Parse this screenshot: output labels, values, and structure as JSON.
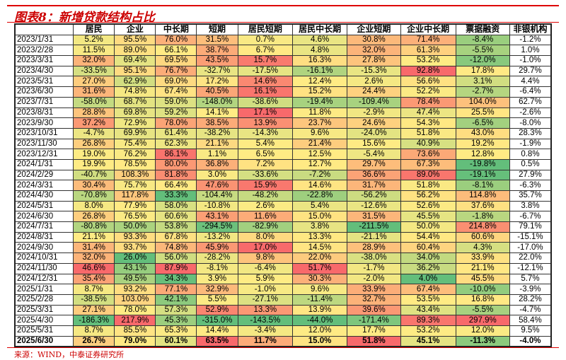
{
  "title": "图表8：新增贷款结构占比",
  "source": "来源：WIND，中泰证券研究所",
  "headers": [
    "",
    "居民",
    "企业",
    "中长期",
    "短期",
    "居民短期",
    "居民中长期",
    "企业短期",
    "企业中长期",
    "票据融资",
    "非银机构"
  ],
  "colors": {
    "low": "#63BE7B",
    "mid": "#FFEB84",
    "high": "#F8696B",
    "no_scale": "#FFFFFF"
  },
  "rows": [
    [
      "2023/1/31",
      "5.2%",
      "95.5%",
      "76.0%",
      "31.5%",
      "0.7%",
      "4.6%",
      "30.8%",
      "71.4%",
      "-8.4%",
      "-1.2%"
    ],
    [
      "2023/2/28",
      "11.5%",
      "89.0%",
      "66.1%",
      "38.7%",
      "6.7%",
      "4.8%",
      "32.0%",
      "61.3%",
      "-5.5%",
      "1.0%"
    ],
    [
      "2023/3/31",
      "32.0%",
      "69.4%",
      "69.5%",
      "43.5%",
      "15.7%",
      "16.3%",
      "27.8%",
      "53.2%",
      "-12.0%",
      "-1.0%"
    ],
    [
      "2023/4/30",
      "-33.5%",
      "95.1%",
      "76.7%",
      "-32.7%",
      "-17.5%",
      "-16.1%",
      "-15.3%",
      "92.8%",
      "17.8%",
      "29.7%"
    ],
    [
      "2023/5/31",
      "27.0%",
      "62.9%",
      "69.0%",
      "17.2%",
      "14.6%",
      "12.4%",
      "2.6%",
      "56.6%",
      "3.1%",
      "4.4%"
    ],
    [
      "2023/6/30",
      "31.6%",
      "74.8%",
      "67.4%",
      "40.5%",
      "16.1%",
      "15.2%",
      "24.4%",
      "52.2%",
      "-2.7%",
      "-6.4%"
    ],
    [
      "2023/7/31",
      "-58.0%",
      "68.7%",
      "59.0%",
      "-148.0%",
      "-38.6%",
      "-19.4%",
      "-109.4%",
      "78.4%",
      "104.0%",
      "62.7%"
    ],
    [
      "2023/8/31",
      "28.8%",
      "69.8%",
      "59.2%",
      "14.1%",
      "17.1%",
      "11.8%",
      "-2.9%",
      "47.4%",
      "25.5%",
      "-2.6%"
    ],
    [
      "2023/9/30",
      "37.2%",
      "72.9%",
      "78.0%",
      "38.5%",
      "13.9%",
      "23.7%",
      "24.6%",
      "54.3%",
      "-6.5%",
      "-8.0%"
    ],
    [
      "2023/10/31",
      "-4.7%",
      "69.9%",
      "61.4%",
      "-38.2%",
      "-14.3%",
      "9.6%",
      "-24.0%",
      "51.8%",
      "43.0%",
      "28.3%"
    ],
    [
      "2023/11/30",
      "26.8%",
      "75.4%",
      "62.3%",
      "21.1%",
      "5.4%",
      "21.4%",
      "15.6%",
      "40.9%",
      "19.2%",
      "-1.9%"
    ],
    [
      "2023/12/31",
      "19.0%",
      "76.2%",
      "86.1%",
      "1.1%",
      "6.5%",
      "12.5%",
      "-5.4%",
      "73.6%",
      "12.8%",
      "0.8%"
    ],
    [
      "2024/1/31",
      "19.9%",
      "78.5%",
      "80.0%",
      "36.8%",
      "7.2%",
      "12.7%",
      "29.7%",
      "67.3%",
      "-19.8%",
      "0.5%"
    ],
    [
      "2024/2/29",
      "-40.7%",
      "108.3%",
      "81.8%",
      "3.0%",
      "-33.6%",
      "-7.2%",
      "36.6%",
      "89.0%",
      "-19.1%",
      "27.9%"
    ],
    [
      "2024/3/31",
      "30.4%",
      "75.7%",
      "66.4%",
      "47.6%",
      "15.9%",
      "14.6%",
      "31.7%",
      "51.8%",
      "-8.1%",
      "-6.3%"
    ],
    [
      "2024/4/30",
      "-70.8%",
      "117.8%",
      "33.3%",
      "-104.4%",
      "-48.2%",
      "-22.8%",
      "-56.2%",
      "56.2%",
      "114.8%",
      "35.7%"
    ],
    [
      "2024/5/31",
      "8.0%",
      "77.9%",
      "58.0%",
      "-10.8%",
      "2.6%",
      "5.4%",
      "-12.6%",
      "52.6%",
      "37.6%",
      "3.8%"
    ],
    [
      "2024/6/30",
      "26.8%",
      "76.5%",
      "60.6%",
      "43.1%",
      "11.6%",
      "15.0%",
      "31.5%",
      "45.5%",
      "-1.8%",
      "-6.7%"
    ],
    [
      "2024/7/31",
      "-80.8%",
      "50.0%",
      "53.8%",
      "-294.5%",
      "-82.9%",
      "3.8%",
      "-211.5%",
      "50.0%",
      "214.8%",
      "79.1%"
    ],
    [
      "2024/8/31",
      "21.1%",
      "93.3%",
      "67.8%",
      "-13.2%",
      "8.0%",
      "13.3%",
      "-21.1%",
      "54.4%",
      "60.6%",
      "-15.1%"
    ],
    [
      "2024/9/30",
      "31.4%",
      "93.7%",
      "74.8%",
      "45.9%",
      "17.0%",
      "14.5%",
      "28.9%",
      "60.4%",
      "4.3%",
      "-17.0%"
    ],
    [
      "2024/10/31",
      "32.0%",
      "26.0%",
      "56.0%",
      "-28.2%",
      "9.8%",
      "22.0%",
      "-38.0%",
      "34.0%",
      "33.9%",
      "22.0%"
    ],
    [
      "2024/11/30",
      "46.6%",
      "43.1%",
      "87.9%",
      "-8.1%",
      "-6.4%",
      "51.7%",
      "-1.7%",
      "36.2%",
      "21.1%",
      "-12.1%"
    ],
    [
      "2024/12/31",
      "35.4%",
      "49.5%",
      "34.3%",
      "3.9%",
      "5.9%",
      "30.3%",
      "-2.0%",
      "4.0%",
      "45.5%",
      "5.7%"
    ],
    [
      "2025/1/31",
      "8.7%",
      "93.2%",
      "77.1%",
      "32.9%",
      "-1.0%",
      "9.6%",
      "33.9%",
      "67.4%",
      "-10.0%",
      "-3.9%"
    ],
    [
      "2025/2/28",
      "-38.5%",
      "103.0%",
      "42.1%",
      "5.5%",
      "-27.1%",
      "-11.4%",
      "32.7%",
      "53.5%",
      "16.8%",
      "28.2%"
    ],
    [
      "2025/3/31",
      "27.1%",
      "78.0%",
      "57.3%",
      "52.9%",
      "13.3%",
      "13.9%",
      "39.6%",
      "43.4%",
      "-5.5%",
      "-4.7%"
    ],
    [
      "2025/4/30",
      "-186.3%",
      "217.9%",
      "45.3%",
      "-315.0%",
      "-143.5%",
      "-44.0%",
      "-171.4%",
      "89.3%",
      "297.9%",
      "58.4%"
    ],
    [
      "2025/5/31",
      "8.7%",
      "85.5%",
      "65.3%",
      "14.4%",
      "-3.4%",
      "12.0%",
      "17.7%",
      "53.2%",
      "12.0%",
      "9.5%"
    ],
    [
      "2025/6/30",
      "26.7%",
      "79.0%",
      "60.1%",
      "63.5%",
      "11.7%",
      "15.0%",
      "51.8%",
      "45.1%",
      "-11.3%",
      "-4.0%"
    ]
  ]
}
